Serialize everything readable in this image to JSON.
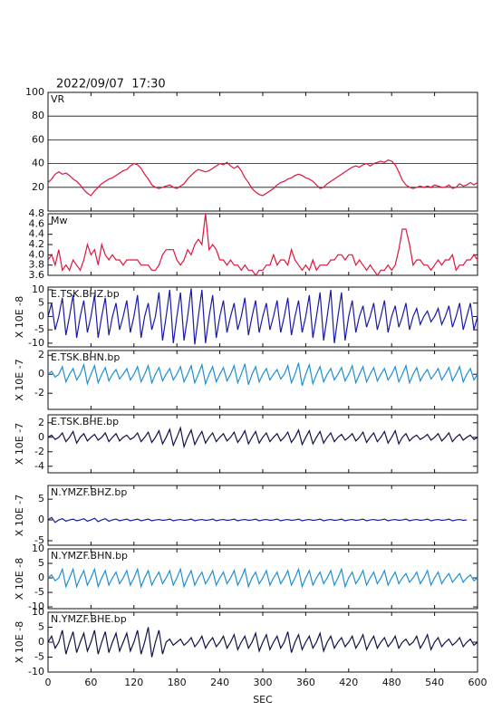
{
  "chart_data": {
    "type": "line",
    "title": "2022/09/07  17:30",
    "x_label": "SEC",
    "xlim": [
      0,
      600
    ],
    "xticks": [
      0,
      60,
      120,
      180,
      240,
      300,
      360,
      420,
      480,
      540,
      600
    ],
    "x": [
      0,
      5,
      10,
      15,
      20,
      25,
      30,
      35,
      40,
      45,
      50,
      55,
      60,
      65,
      70,
      75,
      80,
      85,
      90,
      95,
      100,
      105,
      110,
      115,
      120,
      125,
      130,
      135,
      140,
      145,
      150,
      155,
      160,
      165,
      170,
      175,
      180,
      185,
      190,
      195,
      200,
      205,
      210,
      215,
      220,
      225,
      230,
      235,
      240,
      245,
      250,
      255,
      260,
      265,
      270,
      275,
      280,
      285,
      290,
      295,
      300,
      305,
      310,
      315,
      320,
      325,
      330,
      335,
      340,
      345,
      350,
      355,
      360,
      365,
      370,
      375,
      380,
      385,
      390,
      395,
      400,
      405,
      410,
      415,
      420,
      425,
      430,
      435,
      440,
      445,
      450,
      455,
      460,
      465,
      470,
      475,
      480,
      485,
      490,
      495,
      500,
      505,
      510,
      515,
      520,
      525,
      530,
      535,
      540,
      545,
      550,
      555,
      560,
      565,
      570,
      575,
      580,
      585,
      590,
      595,
      600
    ],
    "panels": [
      {
        "name": "VR",
        "ylim": [
          0,
          100
        ],
        "yticks": [
          20,
          40,
          60,
          80,
          100
        ],
        "grid": true,
        "color": "#e0143c",
        "values": [
          24,
          27,
          31,
          33,
          31,
          32,
          30,
          27,
          25,
          22,
          18,
          15,
          13,
          17,
          20,
          23,
          25,
          27,
          28,
          30,
          32,
          34,
          35,
          38,
          40,
          39,
          36,
          31,
          27,
          22,
          20,
          19,
          20,
          21,
          22,
          20,
          19,
          21,
          23,
          27,
          30,
          33,
          35,
          34,
          33,
          34,
          36,
          38,
          40,
          39,
          41,
          38,
          36,
          38,
          34,
          28,
          24,
          19,
          16,
          14,
          13,
          15,
          17,
          19,
          22,
          24,
          25,
          27,
          28,
          30,
          31,
          30,
          28,
          27,
          25,
          22,
          19,
          20,
          23,
          25,
          27,
          29,
          31,
          33,
          35,
          37,
          38,
          37,
          39,
          40,
          38,
          40,
          41,
          42,
          41,
          43,
          42,
          39,
          33,
          26,
          22,
          20,
          19,
          20,
          21,
          20,
          21,
          20,
          22,
          21,
          20,
          20,
          22,
          19,
          20,
          23,
          21,
          22,
          24,
          22,
          24
        ]
      },
      {
        "name": "Mw",
        "ylim": [
          3.6,
          4.8
        ],
        "yticks": [
          3.6,
          3.8,
          {
            "value": 4,
            "label": "4.0"
          },
          4.2,
          4.4,
          4.6,
          4.8
        ],
        "grid": false,
        "color": "#e0143c",
        "values": [
          3.9,
          4.0,
          3.8,
          4.1,
          3.7,
          3.8,
          3.7,
          3.9,
          3.8,
          3.7,
          3.9,
          4.2,
          4.0,
          4.1,
          3.8,
          4.2,
          4.0,
          3.9,
          4.0,
          3.9,
          3.9,
          3.8,
          3.9,
          3.9,
          3.9,
          3.9,
          3.8,
          3.8,
          3.8,
          3.7,
          3.7,
          3.8,
          4.0,
          4.1,
          4.1,
          4.1,
          3.9,
          3.8,
          3.9,
          4.1,
          4.0,
          4.2,
          4.3,
          4.2,
          4.8,
          4.1,
          4.2,
          4.1,
          3.9,
          3.9,
          3.8,
          3.9,
          3.8,
          3.8,
          3.7,
          3.8,
          3.7,
          3.7,
          3.6,
          3.7,
          3.7,
          3.8,
          3.8,
          4.0,
          3.8,
          3.9,
          3.9,
          3.8,
          4.1,
          3.9,
          3.8,
          3.7,
          3.8,
          3.7,
          3.9,
          3.7,
          3.8,
          3.8,
          3.8,
          3.9,
          3.9,
          4.0,
          4.0,
          3.9,
          4.0,
          4.0,
          3.8,
          3.9,
          3.8,
          3.7,
          3.8,
          3.7,
          3.6,
          3.7,
          3.7,
          3.8,
          3.7,
          3.8,
          4.1,
          4.5,
          4.5,
          4.2,
          3.8,
          3.9,
          3.9,
          3.8,
          3.8,
          3.7,
          3.8,
          3.9,
          3.8,
          3.9,
          3.9,
          4.0,
          3.7,
          3.8,
          3.8,
          3.9,
          3.9,
          4.0,
          3.9
        ]
      },
      {
        "name": "E.TSK.BHZ.bp",
        "ylabel": "X 10E -8",
        "ylim": [
          -11.4,
          11
        ],
        "yticks": [
          -10,
          -5,
          0,
          5,
          10
        ],
        "grid": false,
        "color": "#1a1aa8",
        "values": [
          0,
          5,
          -5,
          0,
          7,
          -7,
          0,
          8,
          -8,
          0,
          6,
          -6,
          0,
          8,
          -8,
          0,
          7,
          -7,
          0,
          5,
          -5,
          0,
          6,
          -6,
          0,
          8,
          -8,
          0,
          5,
          -5,
          0,
          9,
          -9,
          0,
          10,
          -10,
          0,
          9,
          -9,
          0,
          10.5,
          -10.5,
          0,
          10,
          -10,
          0,
          8,
          -8,
          0,
          6,
          -6,
          0,
          5,
          -5,
          0,
          7,
          -7,
          0,
          6,
          -6,
          0,
          5,
          -5,
          0,
          6,
          -6,
          0,
          7,
          -7,
          0,
          6,
          -6,
          0,
          8,
          -8,
          0,
          9,
          -9,
          0,
          10,
          -10,
          0,
          9,
          -9,
          0,
          6,
          -6,
          0,
          4,
          -4,
          0,
          5,
          -5,
          0,
          6,
          -6,
          0,
          4,
          -4,
          0,
          5,
          -5,
          0,
          3,
          -3,
          0,
          2,
          -2,
          0,
          3,
          -3,
          0,
          4,
          -4,
          0,
          5,
          -5,
          0,
          5,
          -5,
          0
        ]
      },
      {
        "name": "E.TSK.BHN.bp",
        "ylabel": "X 10E -7",
        "ylim": [
          -3.7,
          2.5
        ],
        "yticks": [
          -2,
          0,
          2
        ],
        "grid": false,
        "color": "#1e8fd2",
        "values": [
          0,
          0.3,
          -0.3,
          0,
          0.8,
          -0.8,
          0,
          0.6,
          -0.6,
          0,
          1,
          -1,
          0,
          0.9,
          -0.9,
          0,
          0.7,
          -0.7,
          0,
          0.5,
          -0.5,
          0,
          0.6,
          -0.6,
          0,
          0.8,
          -0.8,
          0,
          0.9,
          -0.9,
          0,
          0.7,
          -0.7,
          0,
          0.6,
          -0.6,
          0,
          0.8,
          -0.8,
          0,
          0.9,
          -0.9,
          0,
          1,
          -1,
          0,
          0.8,
          -0.8,
          0,
          0.7,
          -0.7,
          0,
          0.9,
          -0.9,
          0,
          1.1,
          -1.1,
          0,
          0.8,
          -0.8,
          0,
          0.6,
          -0.6,
          0,
          0.5,
          -0.5,
          0,
          0.9,
          -0.9,
          0,
          1.2,
          -1.2,
          0,
          1,
          -1,
          0,
          0.8,
          -0.8,
          0,
          0.6,
          -0.6,
          0,
          0.7,
          -0.7,
          0,
          0.9,
          -0.9,
          0,
          0.8,
          -0.8,
          0,
          0.7,
          -0.7,
          0,
          0.6,
          -0.6,
          0,
          0.8,
          -0.8,
          0,
          0.9,
          -0.9,
          0,
          0.7,
          -0.7,
          0,
          0.5,
          -0.5,
          0,
          0.6,
          -0.6,
          0,
          0.7,
          -0.7,
          0,
          0.8,
          -0.8,
          0,
          0.6,
          -0.6,
          0
        ]
      },
      {
        "name": "E.TSK.BHE.bp",
        "ylabel": "X 10E -7",
        "ylim": [
          -4.9,
          3.1
        ],
        "yticks": [
          -4,
          -2,
          0,
          2
        ],
        "grid": false,
        "color": "#12124a",
        "values": [
          0,
          0.3,
          -0.3,
          0,
          0.6,
          -0.6,
          0,
          0.8,
          -0.8,
          0,
          0.5,
          -0.5,
          0,
          0.4,
          -0.4,
          0,
          0.6,
          -0.6,
          0,
          0.5,
          -0.5,
          0,
          0.3,
          -0.3,
          0,
          0.6,
          -0.6,
          0,
          0.7,
          -0.7,
          0,
          0.9,
          -0.9,
          0,
          1.1,
          -1.1,
          0,
          1.3,
          -1.3,
          0,
          1,
          -1,
          0,
          0.8,
          -0.8,
          0,
          0.6,
          -0.6,
          0,
          0.5,
          -0.5,
          0,
          0.7,
          -0.7,
          0,
          0.9,
          -0.9,
          0,
          0.8,
          -0.8,
          0,
          0.6,
          -0.6,
          0,
          0.5,
          -0.5,
          0,
          0.7,
          -0.7,
          0,
          1,
          -1,
          0,
          0.9,
          -0.9,
          0,
          0.8,
          -0.8,
          0,
          0.6,
          -0.6,
          0,
          0.4,
          -0.4,
          0,
          0.5,
          -0.5,
          0,
          0.7,
          -0.7,
          0,
          0.6,
          -0.6,
          0,
          0.8,
          -0.8,
          0,
          0.9,
          -0.9,
          0,
          0.5,
          -0.5,
          0,
          0.3,
          -0.3,
          0,
          0.4,
          -0.4,
          0,
          0.5,
          -0.5,
          0,
          0.6,
          -0.6,
          0,
          0.4,
          -0.4,
          0,
          0.3,
          -0.3,
          0
        ]
      },
      {
        "name": "N.YMZF.BHZ.bp",
        "ylabel": "X 10E -7",
        "ylim": [
          -6.1,
          8.3
        ],
        "yticks": [
          -5,
          0,
          5
        ],
        "grid": false,
        "color": "#1a1aa8",
        "values": [
          0,
          0.6,
          -0.6,
          0,
          0.3,
          -0.3,
          0,
          0.2,
          -0.2,
          0,
          0.3,
          -0.3,
          0,
          0.4,
          -0.4,
          0,
          0.3,
          -0.3,
          0,
          0.2,
          -0.2,
          0,
          0.2,
          -0.2,
          0,
          0.2,
          -0.2,
          0,
          0.2,
          -0.2,
          0,
          0.1,
          -0.1,
          0,
          0.2,
          -0.2,
          0,
          0.1,
          -0.1,
          0,
          0.2,
          -0.2,
          0,
          0.1,
          -0.1,
          0,
          0.2,
          -0.2,
          0,
          0.1,
          -0.1,
          0,
          0.2,
          -0.2,
          0,
          0.1,
          -0.1,
          0,
          0.2,
          -0.2,
          0,
          0.1,
          -0.1,
          0,
          0.2,
          -0.2,
          0,
          0.1,
          -0.1,
          0,
          0.2,
          -0.2,
          0,
          0.1,
          -0.1,
          0,
          0.2,
          -0.2,
          0,
          0.1,
          -0.1,
          0,
          0.2,
          -0.2,
          0,
          0.1,
          -0.1,
          0,
          0.2,
          -0.2,
          0,
          0.1,
          -0.1,
          0,
          0.2,
          -0.2,
          0,
          0.1,
          -0.1,
          0,
          0.2,
          -0.2,
          0,
          0.1,
          -0.1,
          0,
          0.2,
          -0.2,
          0,
          0.1,
          -0.1,
          0,
          0.2,
          -0.2,
          0,
          0.1,
          -0.1,
          0
        ]
      },
      {
        "name": "N.YMZF.BHN.bp",
        "ylabel": "X 10E -8",
        "ylim": [
          -10.6,
          10
        ],
        "yticks": [
          -10,
          -5,
          0,
          5,
          10
        ],
        "grid": false,
        "color": "#1e8fd2",
        "values": [
          0,
          1,
          -1,
          0,
          3,
          -3,
          0,
          3,
          -3,
          0,
          2.5,
          -2.5,
          0,
          3,
          -3,
          0,
          2.5,
          -2.5,
          0,
          2,
          -2,
          0,
          2.5,
          -2.5,
          0,
          3,
          -3,
          0,
          2.5,
          -2.5,
          0,
          2,
          -2,
          0,
          2.5,
          -2.5,
          0,
          3,
          -3,
          0,
          2.5,
          -2.5,
          0,
          2,
          -2,
          0,
          2.5,
          -2.5,
          0,
          2,
          -2,
          0,
          2.5,
          -2.5,
          0,
          3,
          -3,
          0,
          2,
          -2,
          0,
          2.5,
          -2.5,
          0,
          2,
          -2,
          0,
          2.5,
          -2.5,
          0,
          3,
          -3,
          0,
          2.5,
          -2.5,
          0,
          2,
          -2,
          0,
          2.5,
          -2.5,
          0,
          3,
          -3,
          0,
          2,
          -2,
          0,
          2.5,
          -2.5,
          0,
          2,
          -2,
          0,
          2.5,
          -2.5,
          0,
          2,
          -2,
          0,
          1.5,
          -1.5,
          0,
          2,
          -2,
          0,
          2.5,
          -2.5,
          0,
          2,
          -2,
          0,
          1.5,
          -1.5,
          0,
          1.5,
          -1.5,
          0,
          1,
          -1,
          0
        ]
      },
      {
        "name": "N.YMZF.BHE.bp",
        "ylabel": "X 10E -8",
        "ylim": [
          -10,
          10
        ],
        "yticks": [
          -10,
          -5,
          0,
          5,
          10
        ],
        "grid": false,
        "color": "#12124a",
        "values": [
          0,
          2,
          -2,
          0,
          4,
          -4,
          0,
          3.5,
          -3.5,
          0,
          3,
          -3,
          0,
          4,
          -4,
          0,
          3.5,
          -3.5,
          0,
          3,
          -3,
          0,
          3,
          -3,
          0,
          4,
          -4,
          0,
          5,
          -5,
          0,
          4,
          -4,
          0,
          1,
          -1,
          0,
          1,
          -1,
          0,
          1.5,
          -1.5,
          0,
          2,
          -2,
          0,
          1.5,
          -1.5,
          0,
          2,
          -2,
          0,
          2.5,
          -2.5,
          0,
          2,
          -2,
          0,
          3,
          -3,
          0,
          2.5,
          -2.5,
          0,
          2,
          -2,
          0,
          3.5,
          -3.5,
          0,
          2.5,
          -2.5,
          0,
          2,
          -2,
          0,
          3,
          -3,
          0,
          2,
          -2,
          0,
          1.5,
          -1.5,
          0,
          2,
          -2,
          0,
          2.5,
          -2.5,
          0,
          2,
          -2,
          0,
          1.5,
          -1.5,
          0,
          2,
          -2,
          0,
          1,
          -1,
          0,
          2,
          -2,
          0,
          2.5,
          -2.5,
          0,
          1.5,
          -1.5,
          0,
          1,
          -1,
          0,
          1.5,
          -1.5,
          0,
          1,
          -1,
          0
        ]
      }
    ]
  }
}
